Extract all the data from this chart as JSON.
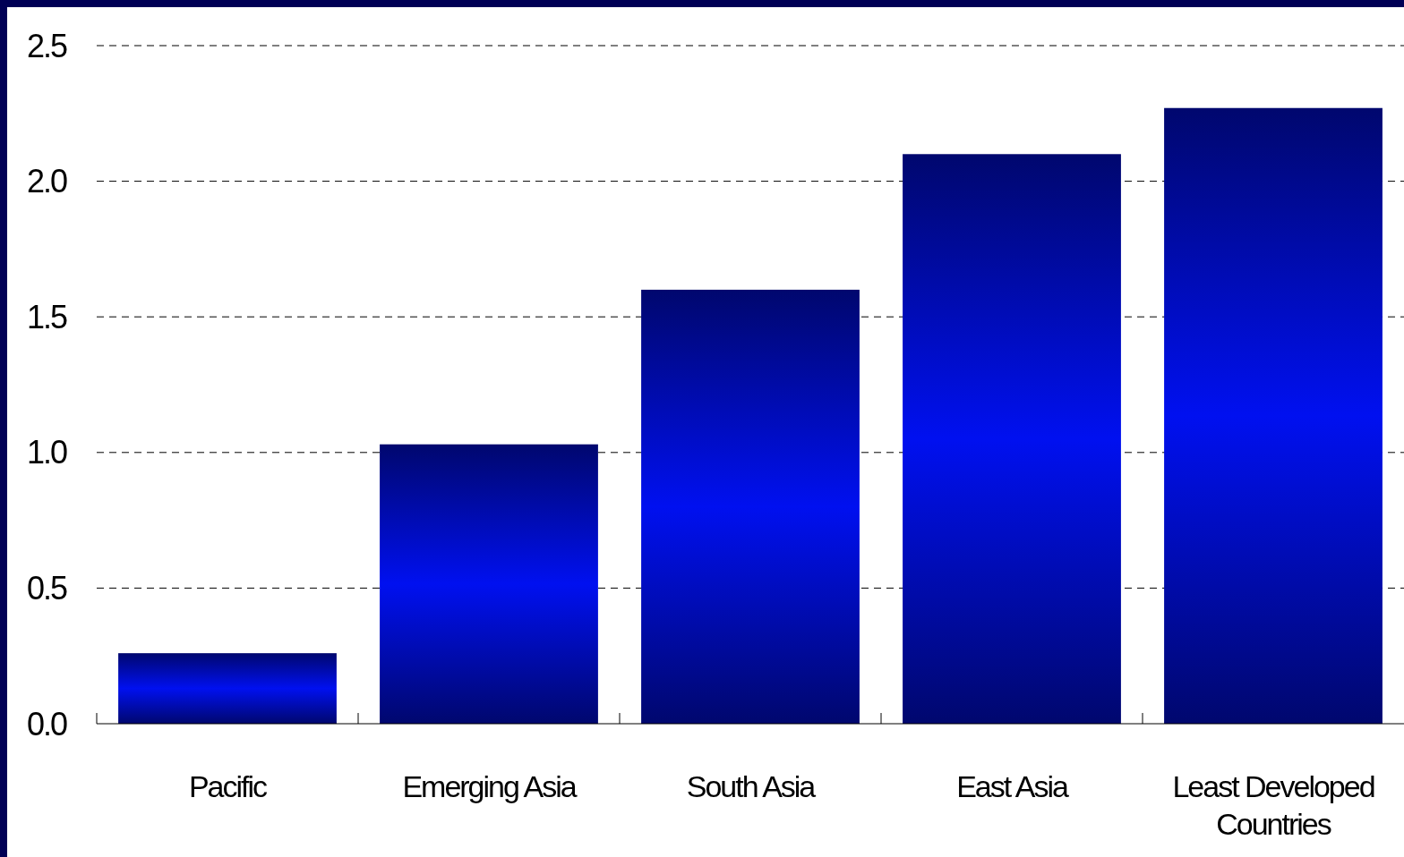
{
  "chart_data": {
    "type": "bar",
    "categories": [
      "Pacific",
      "Emerging Asia",
      "South Asia",
      "East Asia",
      "Least Developed Countries"
    ],
    "values": [
      0.26,
      1.03,
      1.6,
      2.1,
      2.27
    ],
    "color": "#0010f0",
    "ylim": [
      0,
      2.5
    ],
    "yticks": [
      {
        "value": 0,
        "label": "0.0"
      },
      {
        "value": 0.5,
        "label": "0.5"
      },
      {
        "value": 1,
        "label": "1.0"
      },
      {
        "value": 1.5,
        "label": "1.5"
      },
      {
        "value": 2,
        "label": "2.0"
      },
      {
        "value": 2.5,
        "label": "2.5"
      }
    ],
    "grid": "y"
  }
}
